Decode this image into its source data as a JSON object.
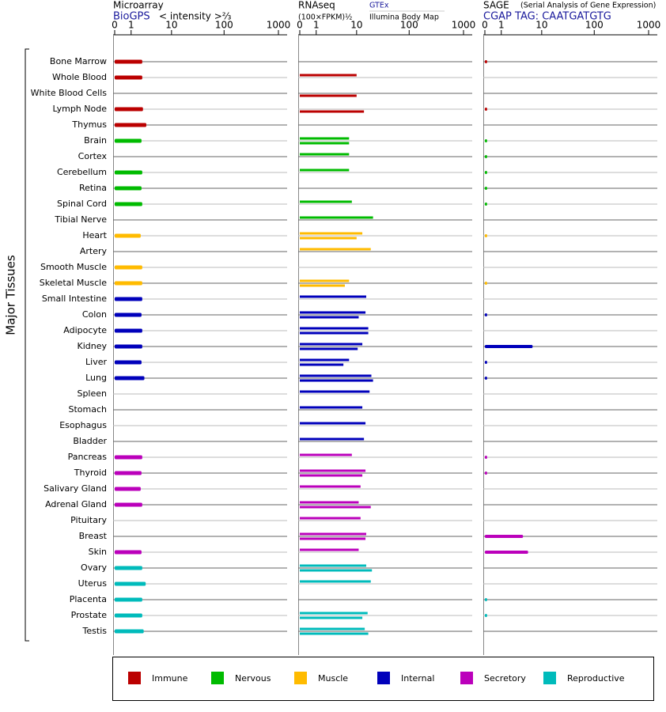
{
  "chart_data": [
    {
      "type": "bar",
      "title": "Microarray",
      "subtitle": "BioGPS",
      "x_label": "< intensity >⅔",
      "y_label": "Major Tissues",
      "categories": [
        "Bone Marrow",
        "Whole Blood",
        "White Blood Cells",
        "Lymph Node",
        "Thymus",
        "Brain",
        "Cortex",
        "Cerebellum",
        "Retina",
        "Spinal Cord",
        "Tibial Nerve",
        "Heart",
        "Artery",
        "Smooth Muscle",
        "Skeletal Muscle",
        "Small Intestine",
        "Colon",
        "Adipocyte",
        "Kidney",
        "Liver",
        "Lung",
        "Spleen",
        "Stomach",
        "Esophagus",
        "Bladder",
        "Pancreas",
        "Thyroid",
        "Salivary Gland",
        "Adrenal Gland",
        "Pituitary",
        "Breast",
        "Skin",
        "Ovary",
        "Uterus",
        "Placenta",
        "Prostate",
        "Testis"
      ],
      "category_colors": [
        "#bb0000",
        "#bb0000",
        "#bb0000",
        "#bb0000",
        "#bb0000",
        "#00bb00",
        "#00bb00",
        "#00bb00",
        "#00bb00",
        "#00bb00",
        "#00bb00",
        "#ffbb00",
        "#ffbb00",
        "#ffbb00",
        "#ffbb00",
        "#0000bb",
        "#0000bb",
        "#0000bb",
        "#0000bb",
        "#0000bb",
        "#0000bb",
        "#0000bb",
        "#0000bb",
        "#0000bb",
        "#0000bb",
        "#bb00bb",
        "#bb00bb",
        "#bb00bb",
        "#bb00bb",
        "#bb00bb",
        "#bb00bb",
        "#bb00bb",
        "#00bbbb",
        "#00bbbb",
        "#00bbbb",
        "#00bbbb",
        "#00bbbb"
      ],
      "xlim": [
        0,
        1000
      ],
      "xticks": [
        0,
        1,
        10,
        100,
        1000
      ],
      "series": [
        {
          "values": [
            2.2,
            2.2,
            null,
            2.3,
            2.8,
            2.1,
            null,
            2.2,
            2.1,
            2.2,
            null,
            2.0,
            null,
            2.2,
            2.2,
            2.2,
            2.1,
            2.2,
            2.2,
            2.1,
            2.5,
            null,
            null,
            null,
            null,
            2.2,
            2.1,
            2.0,
            2.2,
            null,
            null,
            2.1,
            2.2,
            2.7,
            2.2,
            2.2,
            2.4
          ]
        }
      ],
      "legend": [
        {
          "name": "Immune",
          "color": "#bb0000"
        },
        {
          "name": "Nervous",
          "color": "#00bb00"
        },
        {
          "name": "Muscle",
          "color": "#ffbb00"
        },
        {
          "name": "Internal",
          "color": "#0000bb"
        },
        {
          "name": "Secretory",
          "color": "#bb00bb"
        },
        {
          "name": "Reproductive",
          "color": "#00bbbb"
        }
      ]
    },
    {
      "type": "bar",
      "title": "RNAseq",
      "x_label": "(100×FPKM)½",
      "xlim": [
        0,
        1000
      ],
      "xticks": [
        0,
        1,
        10,
        100,
        1000
      ],
      "series": [
        {
          "name": "GTEx",
          "values": [
            null,
            10,
            null,
            null,
            null,
            7,
            7,
            7,
            null,
            8,
            21,
            13,
            19,
            null,
            7,
            15.5,
            15,
            17,
            13,
            7,
            19.5,
            18,
            13,
            15,
            14,
            8,
            15,
            12,
            11,
            12,
            15.5,
            11,
            15.5,
            19,
            null,
            16.5,
            14.5
          ]
        },
        {
          "name": "Illumina Body Map",
          "values": [
            null,
            null,
            10,
            14,
            null,
            7,
            null,
            null,
            null,
            null,
            null,
            10,
            null,
            null,
            5.7,
            null,
            11,
            17,
            10.5,
            5.3,
            21,
            null,
            null,
            null,
            null,
            null,
            13,
            null,
            19,
            null,
            15,
            null,
            20,
            null,
            null,
            13,
            17
          ]
        }
      ]
    },
    {
      "type": "bar",
      "title": "SAGE",
      "note": "(Serial Analysis of Gene Expression)",
      "subtitle": "CGAP TAG: CAATGATGTG",
      "xlim": [
        0,
        1000
      ],
      "xticks": [
        0,
        1,
        10,
        100,
        1000
      ],
      "series": [
        {
          "values": [
            0.1,
            null,
            null,
            0.1,
            null,
            0.1,
            0.1,
            0.1,
            0.1,
            0.1,
            null,
            0.1,
            null,
            null,
            0.1,
            null,
            0.1,
            null,
            6.5,
            0.1,
            0.1,
            null,
            null,
            null,
            null,
            0.1,
            0.1,
            null,
            null,
            null,
            4,
            5.2,
            null,
            null,
            0.1,
            0.1,
            null
          ]
        }
      ]
    }
  ]
}
